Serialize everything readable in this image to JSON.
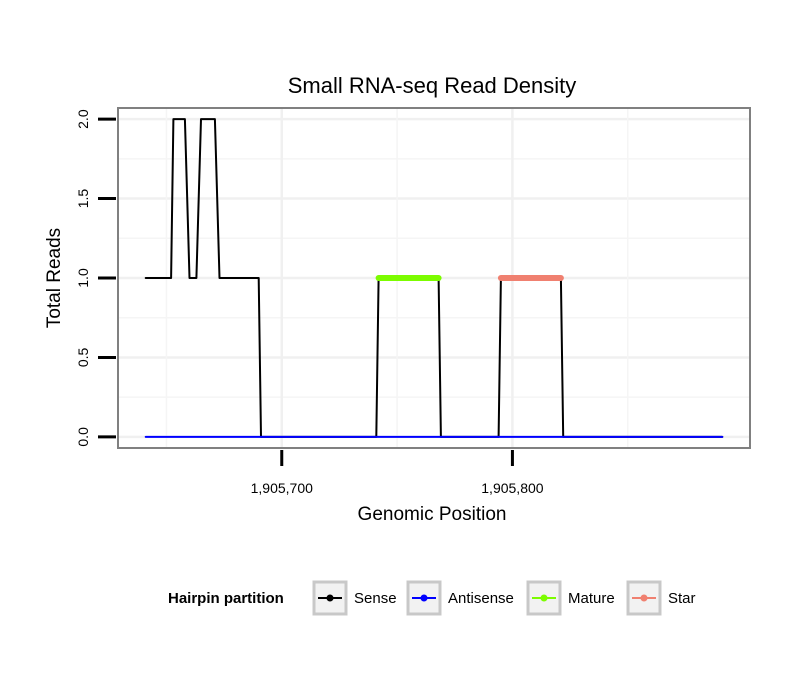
{
  "chart_data": {
    "type": "line",
    "title": "Small RNA-seq Read Density",
    "xlabel": "Genomic Position",
    "ylabel": "Total Reads",
    "xlim": [
      1905629,
      1905903
    ],
    "ylim": [
      -0.07,
      2.07
    ],
    "x_ticks": [
      1905700,
      1905800
    ],
    "x_tick_labels": [
      "1,905,700",
      "1,905,800"
    ],
    "y_ticks": [
      0.0,
      0.5,
      1.0,
      1.5,
      2.0
    ],
    "y_tick_labels": [
      "0.0",
      "0.5",
      "1.0",
      "1.5",
      "2.0"
    ],
    "grid": true,
    "series": [
      {
        "name": "Sense",
        "color": "#000000",
        "x": [
          1905641,
          1905652,
          1905653,
          1905658,
          1905660,
          1905663,
          1905665,
          1905671,
          1905673,
          1905690,
          1905691,
          1905741,
          1905742,
          1905768,
          1905769,
          1905794,
          1905795,
          1905821,
          1905822,
          1905891
        ],
        "y": [
          1,
          1,
          2,
          2,
          1,
          1,
          2,
          2,
          1,
          1,
          0,
          0,
          1,
          1,
          0,
          0,
          1,
          1,
          0,
          0
        ]
      },
      {
        "name": "Antisense",
        "color": "#0000ff",
        "x": [
          1905641,
          1905891
        ],
        "y": [
          0,
          0
        ]
      },
      {
        "name": "Mature",
        "color": "#7cfc00",
        "x": [
          1905742,
          1905768
        ],
        "y": [
          1,
          1
        ]
      },
      {
        "name": "Star",
        "color": "#f08070",
        "x": [
          1905795,
          1905821
        ],
        "y": [
          1,
          1
        ]
      }
    ]
  },
  "legend": {
    "title": "Hairpin partition",
    "items": [
      {
        "label": "Sense",
        "color": "#000000"
      },
      {
        "label": "Antisense",
        "color": "#0000ff"
      },
      {
        "label": "Mature",
        "color": "#7cfc00"
      },
      {
        "label": "Star",
        "color": "#f08070"
      }
    ]
  }
}
